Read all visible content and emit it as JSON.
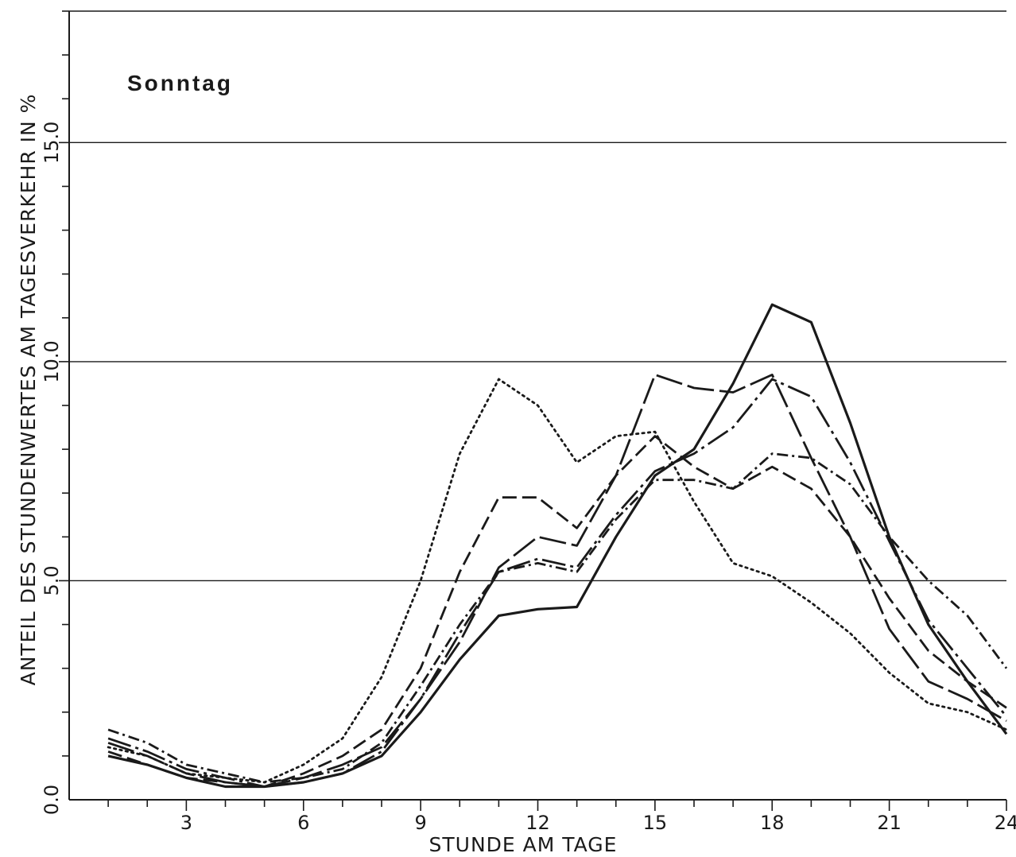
{
  "chart_data": {
    "type": "line",
    "title": "Sonntag",
    "xlabel": "STUNDE AM TAGE",
    "ylabel": "ANTEIL DES STUNDENWERTES AM TAGESVERKEHR IN %",
    "xlim": [
      0,
      24
    ],
    "ylim": [
      0,
      18
    ],
    "x_ticks": [
      "3",
      "6",
      "9",
      "12",
      "15",
      "18",
      "21",
      "24"
    ],
    "y_ticks": [
      "0.0",
      "5.0",
      "10.0",
      "15.0"
    ],
    "grid": "horizontal",
    "legend": "none",
    "x": [
      1,
      2,
      3,
      4,
      5,
      6,
      7,
      8,
      9,
      10,
      11,
      12,
      13,
      14,
      15,
      16,
      17,
      18,
      19,
      20,
      21,
      22,
      23,
      24
    ],
    "series": [
      {
        "style": "solid",
        "values": [
          1.0,
          0.8,
          0.5,
          0.3,
          0.3,
          0.4,
          0.6,
          1.0,
          2.0,
          3.2,
          4.2,
          4.35,
          4.4,
          6.0,
          7.4,
          8.0,
          9.5,
          11.3,
          10.9,
          8.6,
          6.0,
          4.0,
          2.7,
          1.5
        ],
        "color": "#1a1a1a"
      },
      {
        "style": "long-dash",
        "values": [
          1.3,
          1.0,
          0.6,
          0.4,
          0.3,
          0.5,
          0.8,
          1.2,
          2.3,
          3.6,
          5.3,
          6.0,
          5.8,
          7.4,
          9.7,
          9.4,
          9.3,
          9.7,
          7.8,
          6.0,
          3.9,
          2.7,
          2.3,
          1.8
        ],
        "color": "#1a1a1a"
      },
      {
        "style": "medium-dash",
        "values": [
          1.1,
          0.8,
          0.5,
          0.4,
          0.3,
          0.6,
          1.0,
          1.6,
          3.0,
          5.2,
          6.9,
          6.9,
          6.2,
          7.4,
          8.3,
          7.6,
          7.1,
          7.6,
          7.1,
          6.0,
          4.6,
          3.4,
          2.7,
          2.1
        ],
        "color": "#1a1a1a"
      },
      {
        "style": "dotted",
        "values": [
          1.2,
          1.0,
          0.6,
          0.5,
          0.4,
          0.8,
          1.4,
          2.8,
          5.0,
          7.9,
          9.6,
          9.0,
          7.7,
          8.3,
          8.4,
          6.8,
          5.4,
          5.1,
          4.5,
          3.8,
          2.9,
          2.2,
          2.0,
          1.6
        ],
        "color": "#1a1a1a"
      },
      {
        "style": "dash-dot",
        "values": [
          1.6,
          1.3,
          0.8,
          0.6,
          0.4,
          0.5,
          0.7,
          1.3,
          2.6,
          4.0,
          5.2,
          5.4,
          5.2,
          6.4,
          7.3,
          7.3,
          7.1,
          7.9,
          7.8,
          7.2,
          6.0,
          5.0,
          4.2,
          3.0
        ],
        "color": "#1a1a1a"
      },
      {
        "style": "long-dash-dot",
        "values": [
          1.4,
          1.1,
          0.7,
          0.5,
          0.3,
          0.4,
          0.6,
          1.1,
          2.3,
          3.8,
          5.2,
          5.5,
          5.3,
          6.5,
          7.5,
          7.9,
          8.5,
          9.6,
          9.2,
          7.7,
          5.9,
          4.1,
          3.0,
          1.9
        ],
        "color": "#1a1a1a"
      }
    ]
  }
}
